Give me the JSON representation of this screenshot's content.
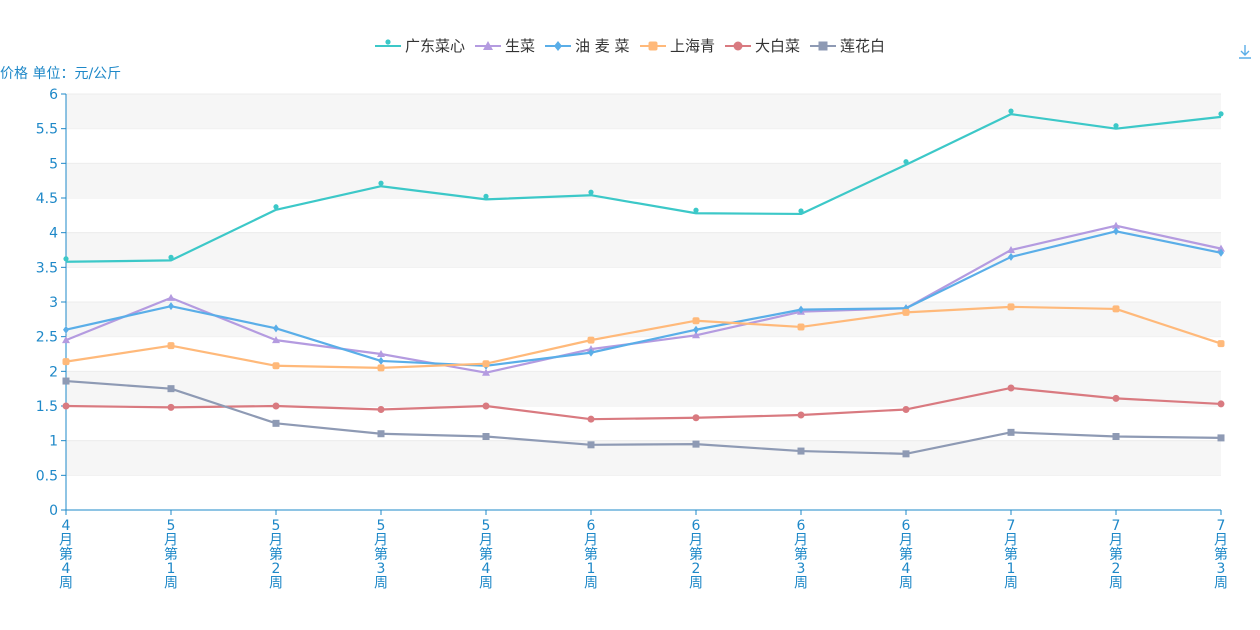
{
  "chart_data": {
    "type": "line",
    "unit_label": "价格 单位：元/公斤",
    "categories": [
      "4月第4周",
      "5月第1周",
      "5月第2周",
      "5月第3周",
      "5月第4周",
      "6月第1周",
      "6月第2周",
      "6月第3周",
      "6月第4周",
      "7月第1周",
      "7月第2周",
      "7月第3周"
    ],
    "ylim": [
      0,
      6
    ],
    "yticks": [
      0,
      0.5,
      1,
      1.5,
      2,
      2.5,
      3,
      3.5,
      4,
      4.5,
      5,
      5.5,
      6
    ],
    "grid": "horizontal-bands",
    "legend_position": "top-center",
    "series": [
      {
        "name": "广东菜心",
        "color": "#3cc8c8",
        "marker": "pin",
        "values": [
          3.58,
          3.6,
          4.33,
          4.67,
          4.48,
          4.54,
          4.28,
          4.27,
          4.98,
          5.71,
          5.5,
          5.67
        ]
      },
      {
        "name": "生菜",
        "color": "#b49be0",
        "marker": "triangle",
        "values": [
          2.45,
          3.06,
          2.45,
          2.25,
          1.98,
          2.32,
          2.52,
          2.86,
          2.91,
          3.75,
          4.1,
          3.77
        ]
      },
      {
        "name": "油 麦 菜",
        "color": "#5aaee8",
        "marker": "diamond",
        "values": [
          2.6,
          2.94,
          2.62,
          2.15,
          2.08,
          2.27,
          2.6,
          2.89,
          2.91,
          3.65,
          4.02,
          3.71
        ]
      },
      {
        "name": "上海青",
        "color": "#ffb97a",
        "marker": "square-round",
        "values": [
          2.14,
          2.37,
          2.08,
          2.05,
          2.11,
          2.45,
          2.73,
          2.64,
          2.85,
          2.93,
          2.9,
          2.4
        ]
      },
      {
        "name": "大白菜",
        "color": "#d97a80",
        "marker": "circle",
        "values": [
          1.5,
          1.48,
          1.5,
          1.45,
          1.5,
          1.31,
          1.33,
          1.37,
          1.45,
          1.76,
          1.61,
          1.53
        ]
      },
      {
        "name": "莲花白",
        "color": "#8e9ab4",
        "marker": "square",
        "values": [
          1.86,
          1.75,
          1.25,
          1.1,
          1.06,
          0.94,
          0.95,
          0.85,
          0.81,
          1.12,
          1.06,
          1.04
        ]
      }
    ]
  },
  "toolbar": {
    "download_icon": "download-icon"
  }
}
